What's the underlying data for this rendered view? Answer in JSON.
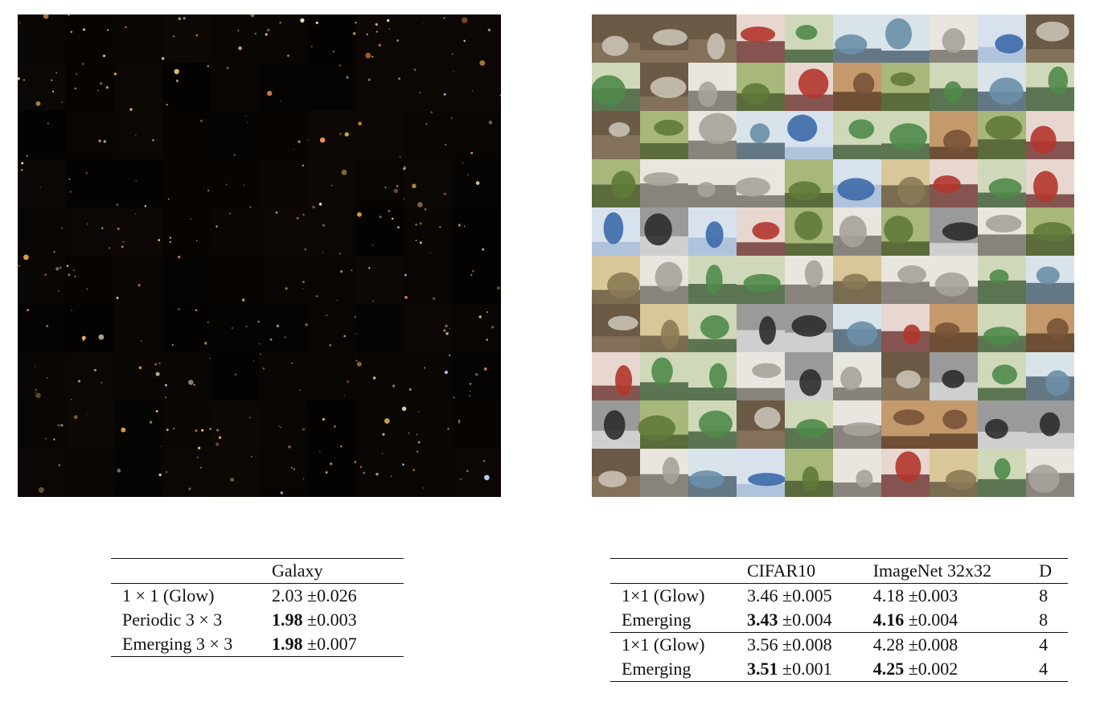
{
  "figure_left": {
    "kind": "galaxy-samples-grid",
    "grid": [
      10,
      10
    ]
  },
  "figure_right": {
    "kind": "cifar10-samples-grid",
    "grid": [
      10,
      10
    ]
  },
  "galaxy_table": {
    "header": [
      "",
      "Galaxy"
    ],
    "rows": [
      {
        "method": "1 × 1 (Glow)",
        "value": "2.03",
        "std": "±0.026",
        "bold": false
      },
      {
        "method": "Periodic 3 × 3",
        "value": "1.98",
        "std": "±0.003",
        "bold": true
      },
      {
        "method": "Emerging 3 × 3",
        "value": "1.98",
        "std": "±0.007",
        "bold": true
      }
    ]
  },
  "cifar_table": {
    "header": [
      "",
      "CIFAR10",
      "ImageNet 32x32",
      "D"
    ],
    "rows": [
      {
        "method": "1×1 (Glow)",
        "cifar": "3.46",
        "cifar_std": "±0.005",
        "cifar_bold": false,
        "imagenet": "4.18",
        "imagenet_std": "±0.003",
        "imagenet_bold": false,
        "d": "8"
      },
      {
        "method": "Emerging",
        "cifar": "3.43",
        "cifar_std": "±0.004",
        "cifar_bold": true,
        "imagenet": "4.16",
        "imagenet_std": "±0.004",
        "imagenet_bold": true,
        "d": "8"
      },
      {
        "method": "1×1 (Glow)",
        "cifar": "3.56",
        "cifar_std": "±0.008",
        "cifar_bold": false,
        "imagenet": "4.28",
        "imagenet_std": "±0.008",
        "imagenet_bold": false,
        "d": "4"
      },
      {
        "method": "Emerging",
        "cifar": "3.51",
        "cifar_std": "±0.001",
        "cifar_bold": true,
        "imagenet": "4.25",
        "imagenet_std": "±0.002",
        "imagenet_bold": true,
        "d": "4"
      }
    ]
  }
}
